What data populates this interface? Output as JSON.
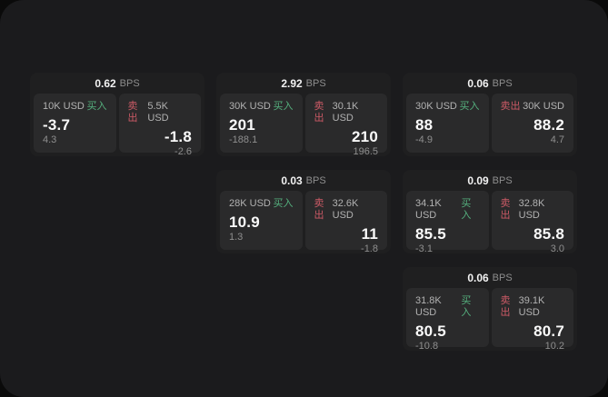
{
  "labels": {
    "bps": "BPS",
    "buy": "买入",
    "sell": "卖出"
  },
  "colors": {
    "buy": "#55b07e",
    "sell": "#cc5a66",
    "panel": "#1b1b1d",
    "card": "#1f1f20",
    "tile": "#2a2a2b"
  },
  "cards": [
    {
      "bps": "0.62",
      "buy": {
        "amount": "10K USD",
        "price": "-3.7",
        "delta": "4.3"
      },
      "sell": {
        "amount": "5.5K USD",
        "price": "-1.8",
        "delta": "-2.6"
      }
    },
    {
      "bps": "2.92",
      "buy": {
        "amount": "30K USD",
        "price": "201",
        "delta": "-188.1"
      },
      "sell": {
        "amount": "30.1K USD",
        "price": "210",
        "delta": "196.5"
      }
    },
    {
      "bps": "0.06",
      "buy": {
        "amount": "30K USD",
        "price": "88",
        "delta": "-4.9"
      },
      "sell": {
        "amount": "30K USD",
        "price": "88.2",
        "delta": "4.7"
      }
    },
    {
      "bps": "0.03",
      "buy": {
        "amount": "28K USD",
        "price": "10.9",
        "delta": "1.3"
      },
      "sell": {
        "amount": "32.6K USD",
        "price": "11",
        "delta": "-1.8"
      }
    },
    {
      "bps": "0.09",
      "buy": {
        "amount": "34.1K USD",
        "price": "85.5",
        "delta": "-3.1"
      },
      "sell": {
        "amount": "32.8K USD",
        "price": "85.8",
        "delta": "3.0"
      }
    },
    {
      "bps": "0.06",
      "buy": {
        "amount": "31.8K USD",
        "price": "80.5",
        "delta": "-10.8"
      },
      "sell": {
        "amount": "39.1K USD",
        "price": "80.7",
        "delta": "10.2"
      }
    }
  ]
}
